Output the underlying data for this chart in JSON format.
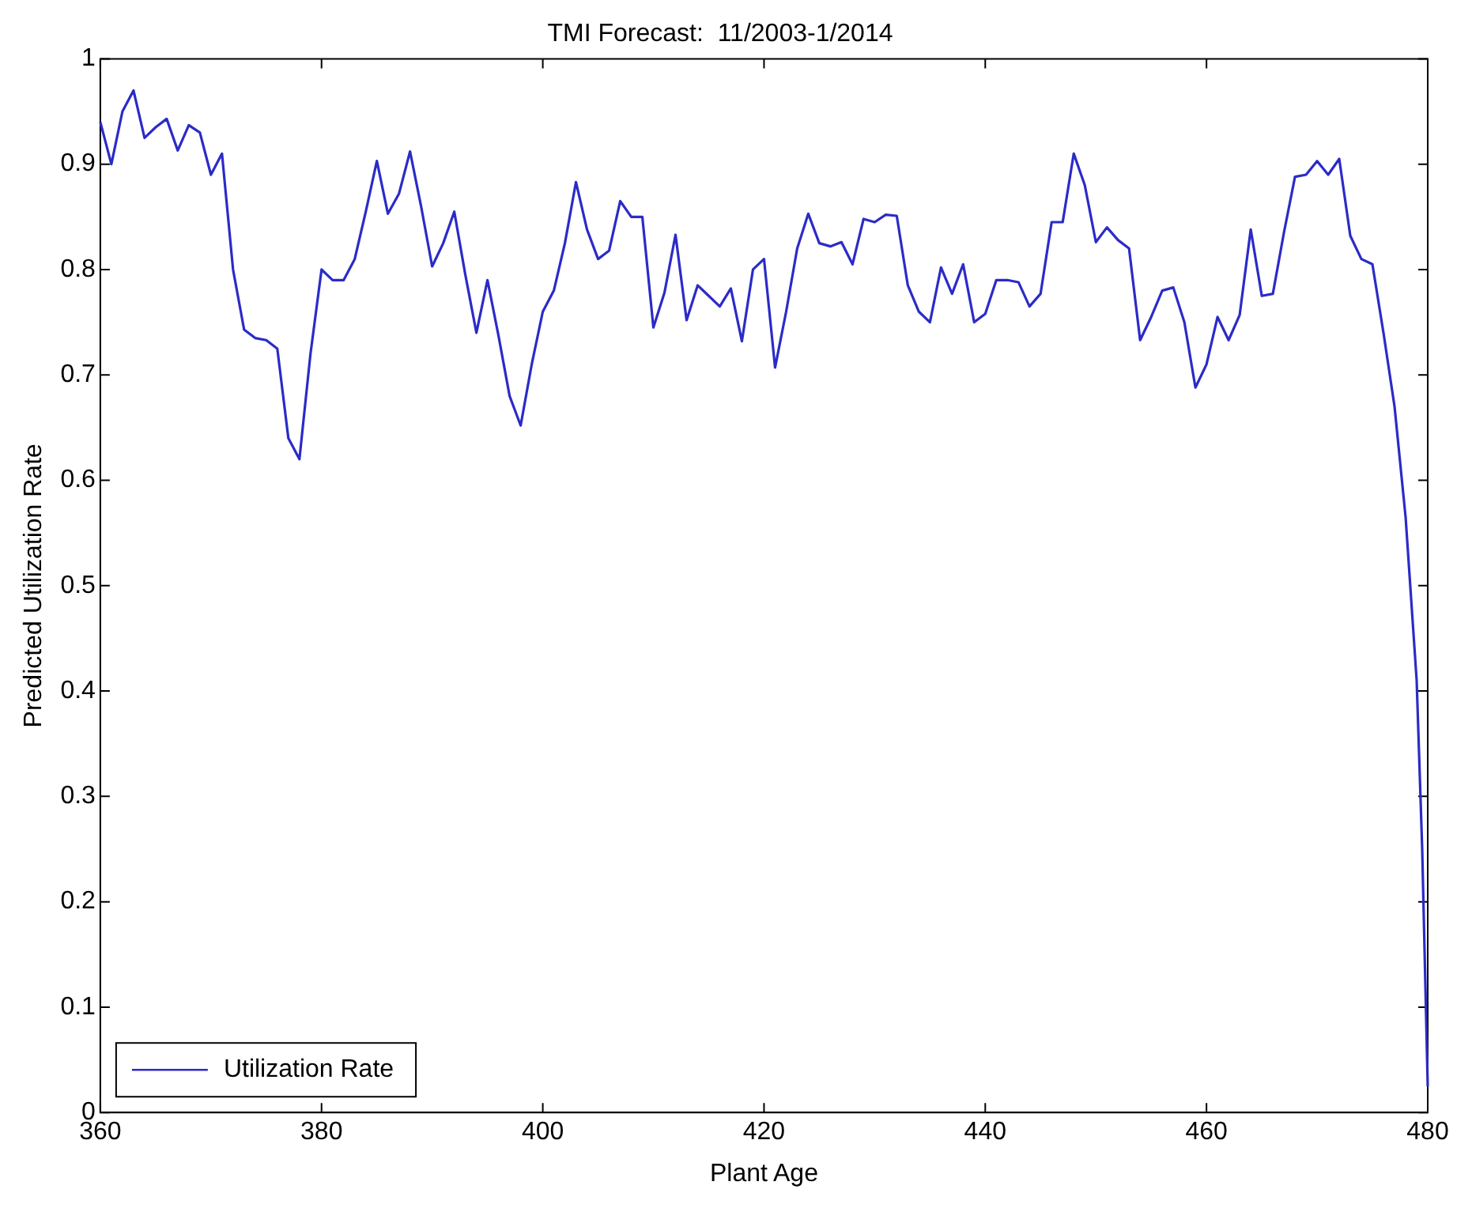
{
  "chart_data": {
    "type": "line",
    "title": "TMI Forecast:  11/2003-1/2014",
    "xlabel": "Plant Age",
    "ylabel": "Predicted Utilization Rate",
    "x": [
      360,
      361,
      362,
      363,
      364,
      365,
      366,
      367,
      368,
      369,
      370,
      371,
      372,
      373,
      374,
      375,
      376,
      377,
      378,
      379,
      380,
      381,
      382,
      383,
      384,
      385,
      386,
      387,
      388,
      389,
      390,
      391,
      392,
      393,
      394,
      395,
      396,
      397,
      398,
      399,
      400,
      401,
      402,
      403,
      404,
      405,
      406,
      407,
      408,
      409,
      410,
      411,
      412,
      413,
      414,
      415,
      416,
      417,
      418,
      419,
      420,
      421,
      422,
      423,
      424,
      425,
      426,
      427,
      428,
      429,
      430,
      431,
      432,
      433,
      434,
      435,
      436,
      437,
      438,
      439,
      440,
      441,
      442,
      443,
      444,
      445,
      446,
      447,
      448,
      449,
      450,
      451,
      452,
      453,
      454,
      455,
      456,
      457,
      458,
      459,
      460,
      461,
      462,
      463,
      464,
      465,
      466,
      467,
      468,
      469,
      470,
      471,
      472,
      473,
      474,
      475,
      476,
      477,
      478,
      479,
      479.5,
      480
    ],
    "series": [
      {
        "name": "Utilization Rate",
        "color": "#2b2bc8",
        "values": [
          0.94,
          0.9,
          0.95,
          0.97,
          0.925,
          0.935,
          0.943,
          0.913,
          0.937,
          0.93,
          0.89,
          0.91,
          0.8,
          0.743,
          0.735,
          0.733,
          0.725,
          0.64,
          0.62,
          0.72,
          0.8,
          0.79,
          0.79,
          0.81,
          0.855,
          0.903,
          0.853,
          0.872,
          0.912,
          0.86,
          0.803,
          0.825,
          0.855,
          0.795,
          0.74,
          0.79,
          0.737,
          0.68,
          0.652,
          0.71,
          0.76,
          0.78,
          0.825,
          0.883,
          0.838,
          0.81,
          0.818,
          0.865,
          0.85,
          0.85,
          0.745,
          0.778,
          0.833,
          0.752,
          0.785,
          0.775,
          0.765,
          0.782,
          0.732,
          0.8,
          0.81,
          0.707,
          0.76,
          0.82,
          0.853,
          0.825,
          0.822,
          0.826,
          0.805,
          0.848,
          0.845,
          0.852,
          0.851,
          0.785,
          0.76,
          0.75,
          0.802,
          0.777,
          0.805,
          0.75,
          0.758,
          0.79,
          0.79,
          0.788,
          0.765,
          0.777,
          0.845,
          0.845,
          0.91,
          0.88,
          0.826,
          0.84,
          0.828,
          0.82,
          0.733,
          0.755,
          0.78,
          0.783,
          0.75,
          0.688,
          0.71,
          0.755,
          0.733,
          0.757,
          0.838,
          0.775,
          0.777,
          0.835,
          0.888,
          0.89,
          0.903,
          0.89,
          0.905,
          0.832,
          0.81,
          0.805,
          0.74,
          0.67,
          0.565,
          0.41,
          0.25,
          0.025
        ]
      }
    ],
    "xlim": [
      360,
      480
    ],
    "xticks": [
      360,
      380,
      400,
      420,
      440,
      460,
      480
    ],
    "ylim": [
      0,
      1
    ],
    "yticks": [
      0,
      0.1,
      0.2,
      0.3,
      0.4,
      0.5,
      0.6,
      0.7,
      0.8,
      0.9,
      1
    ],
    "grid": false,
    "legend": "bottom left",
    "marker": "none",
    "line_style": "solid"
  }
}
